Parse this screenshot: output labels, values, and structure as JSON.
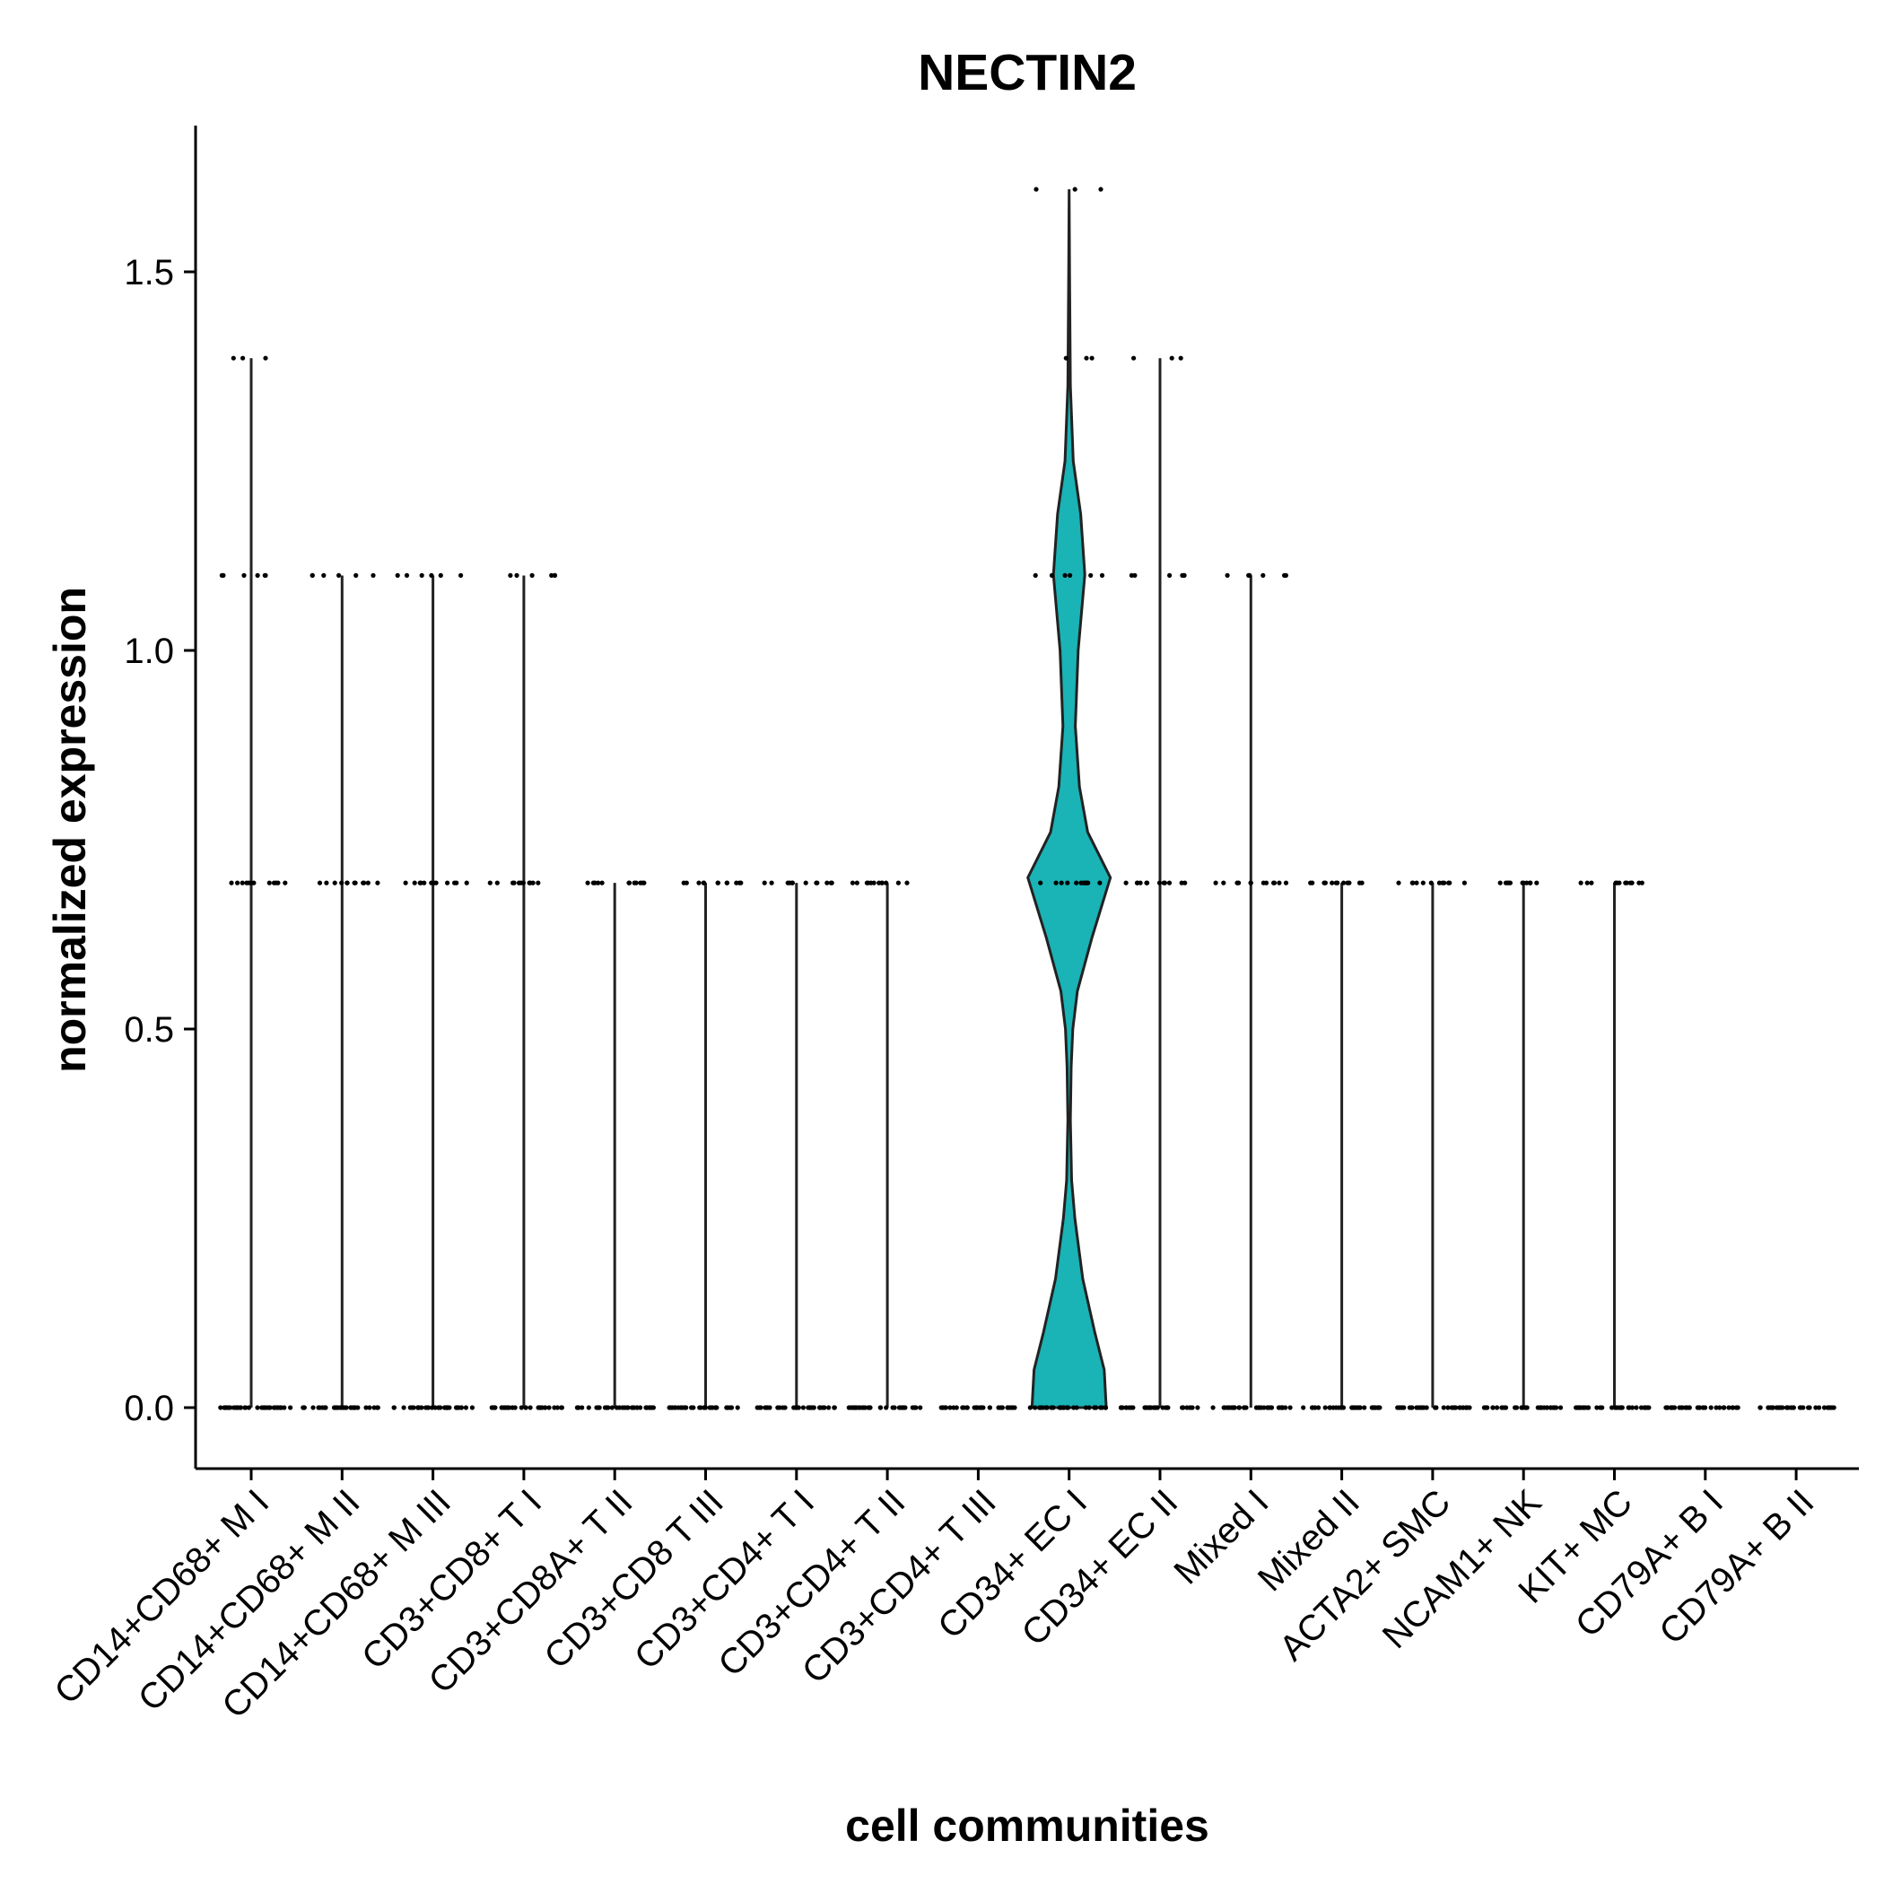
{
  "chart_data": {
    "type": "violin",
    "title": "NECTIN2",
    "xlabel": "cell communities",
    "ylabel": "normalized expression",
    "ylim": [
      -0.08,
      1.67
    ],
    "yticks": [
      0.0,
      0.5,
      1.0,
      1.5
    ],
    "ytick_labels": [
      "0.0",
      "0.5",
      "1.0",
      "1.5"
    ],
    "grid": false,
    "legend": "none",
    "colors": {
      "fill": "#1ab3b6",
      "outline": "#222222",
      "points": "#000000"
    },
    "categories": [
      "CD14+CD68+ M I",
      "CD14+CD68+ M II",
      "CD14+CD68+ M III",
      "CD3+CD8+ T I",
      "CD3+CD8A+ T II",
      "CD3+CD8 T III",
      "CD3+CD4+ T I",
      "CD3+CD4+ T II",
      "CD3+CD4+ T III",
      "CD34+ EC I",
      "CD34+ EC II",
      "Mixed I",
      "Mixed II",
      "ACTA2+ SMC",
      "NCAM1+ NK",
      "KIT+ MC",
      "CD79A+ B I",
      "CD79A+ B II"
    ],
    "series": [
      {
        "category": "CD14+CD68+ M I",
        "max": 1.386,
        "levels": [
          0,
          0.693,
          1.099,
          1.386
        ]
      },
      {
        "category": "CD14+CD68+ M II",
        "max": 1.099,
        "levels": [
          0,
          0.693,
          1.099
        ]
      },
      {
        "category": "CD14+CD68+ M III",
        "max": 1.099,
        "levels": [
          0,
          0.693,
          1.099
        ]
      },
      {
        "category": "CD3+CD8+ T I",
        "max": 1.099,
        "levels": [
          0,
          0.693,
          1.099
        ]
      },
      {
        "category": "CD3+CD8A+ T II",
        "max": 0.693,
        "levels": [
          0,
          0.693
        ]
      },
      {
        "category": "CD3+CD8 T III",
        "max": 0.693,
        "levels": [
          0,
          0.693
        ]
      },
      {
        "category": "CD3+CD4+ T I",
        "max": 0.693,
        "levels": [
          0,
          0.693
        ]
      },
      {
        "category": "CD3+CD4+ T II",
        "max": 0.693,
        "levels": [
          0,
          0.693
        ]
      },
      {
        "category": "CD3+CD4+ T III",
        "max": 0,
        "levels": [
          0
        ]
      },
      {
        "category": "CD34+ EC I",
        "max": 1.609,
        "levels": [
          0,
          0.693,
          1.099,
          1.386,
          1.609
        ],
        "density": [
          [
            0,
            0.9
          ],
          [
            0.05,
            0.85
          ],
          [
            0.1,
            0.62
          ],
          [
            0.17,
            0.33
          ],
          [
            0.25,
            0.14
          ],
          [
            0.3,
            0.06
          ],
          [
            0.38,
            0.03
          ],
          [
            0.45,
            0.05
          ],
          [
            0.5,
            0.09
          ],
          [
            0.55,
            0.2
          ],
          [
            0.62,
            0.55
          ],
          [
            0.7,
            1.0
          ],
          [
            0.76,
            0.45
          ],
          [
            0.82,
            0.25
          ],
          [
            0.9,
            0.15
          ],
          [
            1.0,
            0.22
          ],
          [
            1.1,
            0.38
          ],
          [
            1.18,
            0.28
          ],
          [
            1.25,
            0.1
          ],
          [
            1.35,
            0.03
          ],
          [
            1.5,
            0.01
          ],
          [
            1.609,
            0.0
          ]
        ]
      },
      {
        "category": "CD34+ EC II",
        "max": 1.386,
        "levels": [
          0,
          0.693,
          1.099,
          1.386
        ]
      },
      {
        "category": "Mixed I",
        "max": 1.099,
        "levels": [
          0,
          0.693,
          1.099
        ]
      },
      {
        "category": "Mixed II",
        "max": 0.693,
        "levels": [
          0,
          0.693
        ]
      },
      {
        "category": "ACTA2+ SMC",
        "max": 0.693,
        "levels": [
          0,
          0.693
        ]
      },
      {
        "category": "NCAM1+ NK",
        "max": 0.693,
        "levels": [
          0,
          0.693
        ]
      },
      {
        "category": "KIT+ MC",
        "max": 0.693,
        "levels": [
          0,
          0.693
        ]
      },
      {
        "category": "CD79A+ B I",
        "max": 0,
        "levels": [
          0
        ]
      },
      {
        "category": "CD79A+ B II",
        "max": 0,
        "levels": [
          0
        ]
      }
    ]
  }
}
